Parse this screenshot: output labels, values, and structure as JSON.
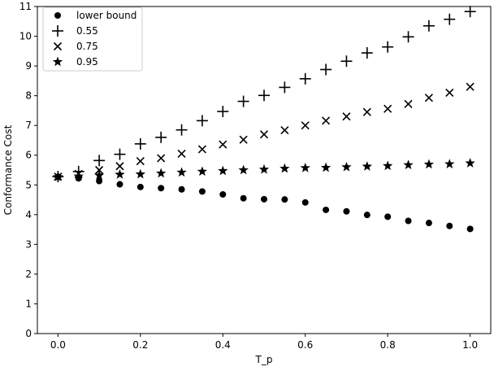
{
  "chart_data": {
    "type": "scatter",
    "xlabel": "T_p",
    "ylabel": "Conformance Cost",
    "xlim": [
      -0.05,
      1.05
    ],
    "ylim": [
      0,
      11
    ],
    "xticks": [
      0.0,
      0.2,
      0.4,
      0.6,
      0.8,
      1.0
    ],
    "xtick_labels": [
      "0.0",
      "0.2",
      "0.4",
      "0.6",
      "0.8",
      "1.0"
    ],
    "yticks": [
      0,
      1,
      2,
      3,
      4,
      5,
      6,
      7,
      8,
      9,
      10,
      11
    ],
    "ytick_labels": [
      "0",
      "1",
      "2",
      "3",
      "4",
      "5",
      "6",
      "7",
      "8",
      "9",
      "10",
      "11"
    ],
    "grid": false,
    "legend_position": "top-left",
    "x": [
      0.0,
      0.05,
      0.1,
      0.15,
      0.2,
      0.25,
      0.3,
      0.35,
      0.4,
      0.45,
      0.5,
      0.55,
      0.6,
      0.65,
      0.7,
      0.75,
      0.8,
      0.85,
      0.9,
      0.95,
      1.0
    ],
    "series": [
      {
        "name": "lower bound",
        "marker": "circle",
        "values": [
          5.27,
          5.22,
          5.13,
          5.02,
          4.93,
          4.89,
          4.85,
          4.78,
          4.68,
          4.55,
          4.52,
          4.51,
          4.41,
          4.16,
          4.11,
          3.99,
          3.93,
          3.79,
          3.72,
          3.62,
          3.52
        ]
      },
      {
        "name": "0.55",
        "marker": "plus",
        "values": [
          5.28,
          5.45,
          5.82,
          6.03,
          6.38,
          6.6,
          6.85,
          7.16,
          7.47,
          7.81,
          8.01,
          8.28,
          8.57,
          8.88,
          9.16,
          9.44,
          9.64,
          9.98,
          10.35,
          10.57,
          10.83
        ]
      },
      {
        "name": "0.75",
        "marker": "x",
        "values": [
          5.28,
          5.37,
          5.5,
          5.63,
          5.8,
          5.9,
          6.05,
          6.2,
          6.36,
          6.52,
          6.7,
          6.84,
          7.0,
          7.16,
          7.3,
          7.45,
          7.56,
          7.72,
          7.93,
          8.1,
          8.3
        ]
      },
      {
        "name": "0.95",
        "marker": "star",
        "values": [
          5.27,
          5.29,
          5.32,
          5.35,
          5.36,
          5.39,
          5.42,
          5.45,
          5.47,
          5.5,
          5.52,
          5.55,
          5.57,
          5.58,
          5.6,
          5.62,
          5.64,
          5.67,
          5.69,
          5.7,
          5.73
        ]
      }
    ]
  },
  "colors": {
    "marker": "#000000",
    "axis": "#000000",
    "legend_border": "#cccccc"
  }
}
